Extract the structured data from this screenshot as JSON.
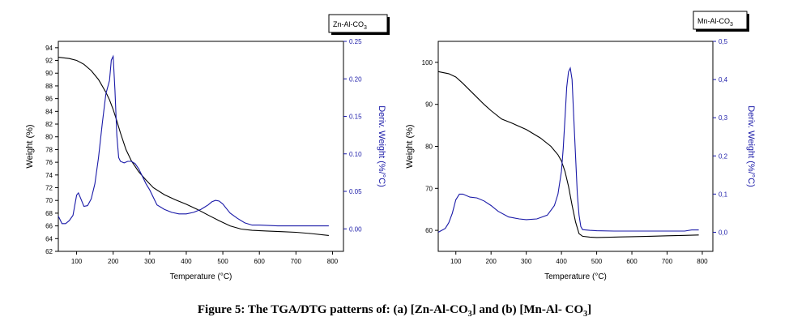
{
  "caption": {
    "prefix": "Figure 5: The TGA/DTG patterns of: (a) [Zn-Al-CO",
    "sub1": "3",
    "mid": "] and (b) [Mn-Al- CO",
    "sub2": "3",
    "suffix": "]"
  },
  "colors": {
    "weight": "#000000",
    "deriv": "#1a1aa8",
    "axis": "#000000"
  },
  "chart_data": [
    {
      "type": "line",
      "legend_box": {
        "main": "Zn-Al-CO",
        "sub": "3"
      },
      "xlabel": "Temperature (°C)",
      "ylabel": "Weight (%)",
      "y2label": "Deriv. Weight (%/°C)",
      "xlim": [
        50,
        830
      ],
      "ylim": [
        62,
        95
      ],
      "y2lim": [
        -0.03,
        0.25
      ],
      "x_ticks": [
        "100",
        "200",
        "300",
        "400",
        "500",
        "600",
        "700",
        "800"
      ],
      "y_ticks": [
        "62",
        "64",
        "66",
        "68",
        "70",
        "72",
        "74",
        "76",
        "78",
        "80",
        "82",
        "84",
        "86",
        "88",
        "90",
        "92",
        "94"
      ],
      "y2_ticks": [
        "0.00",
        "0.05",
        "0.10",
        "0.15",
        "0.20",
        "0.25"
      ],
      "series": [
        {
          "axis": "left",
          "x": [
            50,
            80,
            100,
            120,
            140,
            160,
            180,
            190,
            200,
            210,
            220,
            235,
            250,
            270,
            290,
            310,
            340,
            370,
            400,
            430,
            460,
            490,
            520,
            550,
            580,
            620,
            660,
            700,
            740,
            790
          ],
          "y": [
            92.5,
            92.3,
            92.0,
            91.4,
            90.4,
            89.0,
            87.0,
            85.8,
            84.3,
            82.5,
            80.6,
            78.0,
            76.2,
            74.5,
            73.2,
            72.0,
            70.9,
            70.1,
            69.4,
            68.6,
            67.7,
            66.8,
            66.0,
            65.5,
            65.3,
            65.2,
            65.1,
            65.0,
            64.8,
            64.5
          ]
        },
        {
          "axis": "right",
          "x": [
            50,
            60,
            70,
            80,
            90,
            100,
            105,
            110,
            120,
            130,
            140,
            150,
            160,
            170,
            180,
            190,
            195,
            200,
            205,
            210,
            215,
            220,
            230,
            240,
            250,
            260,
            270,
            280,
            290,
            300,
            320,
            340,
            360,
            380,
            400,
            420,
            440,
            460,
            470,
            480,
            490,
            500,
            510,
            520,
            540,
            560,
            580,
            600,
            650,
            700,
            750,
            790
          ],
          "y": [
            0.017,
            0.007,
            0.007,
            0.011,
            0.018,
            0.045,
            0.048,
            0.042,
            0.03,
            0.031,
            0.04,
            0.06,
            0.095,
            0.14,
            0.18,
            0.198,
            0.225,
            0.23,
            0.185,
            0.125,
            0.095,
            0.09,
            0.088,
            0.09,
            0.09,
            0.087,
            0.08,
            0.07,
            0.06,
            0.052,
            0.032,
            0.026,
            0.022,
            0.02,
            0.02,
            0.022,
            0.026,
            0.032,
            0.036,
            0.038,
            0.037,
            0.033,
            0.027,
            0.021,
            0.014,
            0.008,
            0.005,
            0.005,
            0.004,
            0.004,
            0.004,
            0.004
          ]
        }
      ]
    },
    {
      "type": "line",
      "legend_box": {
        "main": "Mn-Al-CO",
        "sub": "3"
      },
      "xlabel": "Temperature (°C)",
      "ylabel": "Weight (%)",
      "y2label": "Deriv. Weight (%/°C)",
      "xlim": [
        50,
        830
      ],
      "ylim": [
        55,
        105
      ],
      "y2lim": [
        -0.05,
        0.5
      ],
      "x_ticks": [
        "100",
        "200",
        "300",
        "400",
        "500",
        "600",
        "700",
        "800"
      ],
      "y_ticks": [
        "60",
        "70",
        "80",
        "90",
        "100"
      ],
      "y2_ticks": [
        "0,0",
        "0,1",
        "0,2",
        "0,3",
        "0,4",
        "0,5"
      ],
      "series": [
        {
          "axis": "left",
          "x": [
            50,
            80,
            100,
            120,
            150,
            180,
            200,
            230,
            260,
            300,
            340,
            370,
            390,
            400,
            410,
            420,
            430,
            440,
            450,
            460,
            480,
            500,
            550,
            600,
            650,
            700,
            750,
            790
          ],
          "y": [
            97.8,
            97.3,
            96.5,
            95.0,
            92.5,
            90.0,
            88.5,
            86.5,
            85.5,
            84.0,
            82.0,
            80.0,
            78.0,
            76.5,
            74.0,
            70.5,
            66.0,
            62.0,
            59.2,
            58.6,
            58.4,
            58.3,
            58.4,
            58.5,
            58.6,
            58.7,
            58.8,
            58.9
          ]
        },
        {
          "axis": "right",
          "x": [
            50,
            60,
            70,
            80,
            90,
            100,
            110,
            120,
            140,
            160,
            180,
            200,
            220,
            250,
            280,
            300,
            330,
            360,
            380,
            390,
            400,
            405,
            410,
            415,
            420,
            425,
            430,
            435,
            440,
            445,
            450,
            455,
            460,
            480,
            500,
            550,
            600,
            650,
            700,
            750,
            770,
            790
          ],
          "y": [
            0.0,
            0.005,
            0.01,
            0.025,
            0.05,
            0.085,
            0.1,
            0.1,
            0.092,
            0.09,
            0.082,
            0.07,
            0.055,
            0.04,
            0.035,
            0.033,
            0.035,
            0.045,
            0.07,
            0.1,
            0.16,
            0.22,
            0.3,
            0.38,
            0.42,
            0.43,
            0.4,
            0.3,
            0.2,
            0.1,
            0.045,
            0.015,
            0.007,
            0.005,
            0.004,
            0.003,
            0.003,
            0.003,
            0.003,
            0.003,
            0.006,
            0.006
          ]
        }
      ]
    }
  ]
}
